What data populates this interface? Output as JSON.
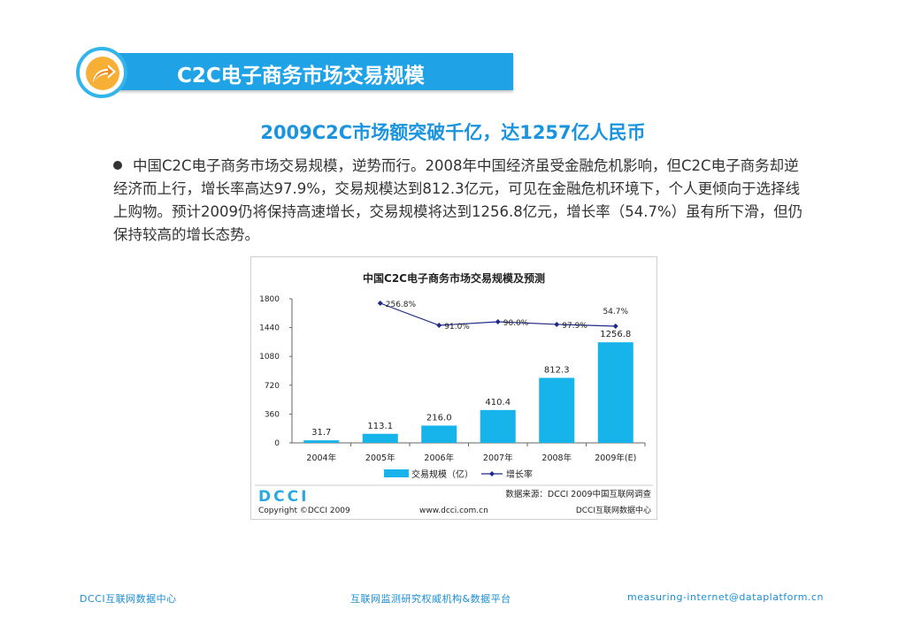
{
  "header": {
    "title": "C2C电子商务市场交易规模"
  },
  "slide": {
    "subtitle": "2009C2C市场额突破千亿，达1257亿人民币",
    "paragraph": "中国C2C电子商务市场交易规模，逆势而行。2008年中国经济虽受金融危机影响，但C2C电子商务却逆经济而上行，增长率高达97.9%，交易规模达到812.3亿元，可见在金融危机环境下，个人更倾向于选择线上购物。预计2009仍将保持高速增长，交易规模将达到1256.8亿元，增长率（54.7%）虽有所下滑，但仍保持较高的增长态势。"
  },
  "chart_data": {
    "type": "bar",
    "title": "中国C2C电子商务市场交易规模及预测",
    "categories": [
      "2004年",
      "2005年",
      "2006年",
      "2007年",
      "2008年",
      "2009年(E)"
    ],
    "series": [
      {
        "name": "交易规模（亿）",
        "values": [
          31.7,
          113.1,
          216.0,
          410.4,
          812.3,
          1256.8
        ],
        "labels": [
          "31.7",
          "113.1",
          "216.0",
          "410.4",
          "812.3",
          "1256.8"
        ],
        "color": "#16b4ea"
      },
      {
        "name": "增长率",
        "type": "line",
        "values": [
          null,
          256.8,
          91.0,
          90.0,
          97.9,
          54.7
        ],
        "labels": [
          "",
          "256.8%",
          "91.0%",
          "90.0%",
          "97.9%",
          "54.7%"
        ],
        "color": "#1f2a8a"
      }
    ],
    "yticks": [
      "0",
      "360",
      "720",
      "1080",
      "1440",
      "1800"
    ],
    "ylim": [
      0,
      1800
    ],
    "grid": false,
    "legend": "bottom"
  },
  "chart_footer": {
    "logo": "DCCI",
    "source": "数据来源：DCCI 2009中国互联网调查",
    "copyright": "Copyright ©DCCI 2009",
    "website": "www.dcci.com.cn",
    "center": "DCCI互联网数据中心"
  },
  "footer": {
    "left": "DCCI互联网数据中心",
    "middle": "互联网监测研究权威机构&数据平台",
    "right": "measuring-internet@dataplatform.cn"
  },
  "colors": {
    "accent": "#1fa3e6",
    "subtitle": "#1a94e0",
    "bar": "#16b4ea",
    "line": "#1f2a8a",
    "logo_orange": "#f5a32a"
  },
  "icons": {
    "logo": "orange-arrow-icon"
  }
}
